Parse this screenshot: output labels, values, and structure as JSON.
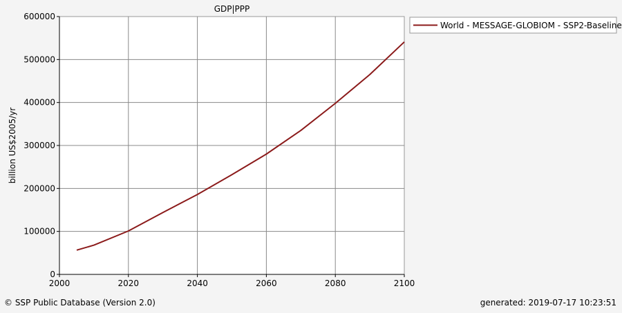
{
  "chart_data": {
    "type": "line",
    "title": "GDP|PPP",
    "xlabel": "",
    "ylabel": "billion US$2005/yr",
    "xlim": [
      2000,
      2100
    ],
    "ylim": [
      0,
      600000
    ],
    "x_ticks": [
      2000,
      2020,
      2040,
      2060,
      2080,
      2100
    ],
    "y_ticks": [
      0,
      100000,
      200000,
      300000,
      400000,
      500000,
      600000
    ],
    "grid": true,
    "legend_position": "top-right",
    "series": [
      {
        "name": "World - MESSAGE-GLOBIOM - SSP2-Baseline",
        "color": "#8b1a1a",
        "x": [
          2005,
          2010,
          2020,
          2030,
          2040,
          2050,
          2060,
          2070,
          2080,
          2090,
          2100
        ],
        "y": [
          56500,
          68000,
          101000,
          144000,
          186000,
          232000,
          280000,
          335000,
          398000,
          465000,
          541000
        ]
      }
    ]
  },
  "footer": {
    "source": "© SSP Public Database (Version 2.0)",
    "generated": "generated: 2019-07-17 10:23:51"
  }
}
